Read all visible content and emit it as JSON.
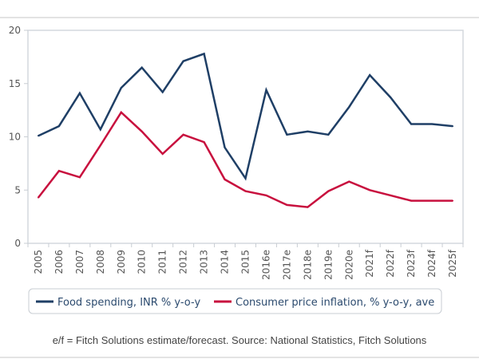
{
  "chart_data": {
    "type": "line",
    "categories": [
      "2005",
      "2006",
      "2007",
      "2008",
      "2009",
      "2010",
      "2011",
      "2012",
      "2013",
      "2014",
      "2015",
      "2016e",
      "2017e",
      "2018e",
      "2019e",
      "2020e",
      "2021f",
      "2022f",
      "2023f",
      "2024f",
      "2025f"
    ],
    "series": [
      {
        "name": "Food spending, INR % y-o-y",
        "color": "#1f3f66",
        "values": [
          10.1,
          11.0,
          14.1,
          10.7,
          14.6,
          16.5,
          14.2,
          17.1,
          17.8,
          9.0,
          6.1,
          14.4,
          10.2,
          10.5,
          10.2,
          12.8,
          15.8,
          13.7,
          11.2,
          11.2,
          11.0
        ]
      },
      {
        "name": "Consumer price inflation, % y-o-y, ave",
        "color": "#c8103e",
        "values": [
          4.3,
          6.8,
          6.2,
          9.2,
          12.3,
          10.5,
          8.4,
          10.2,
          9.5,
          6.0,
          4.9,
          4.5,
          3.6,
          3.4,
          4.9,
          5.8,
          5.0,
          4.5,
          4.0,
          4.0,
          4.0
        ]
      }
    ],
    "ylim": [
      0,
      20
    ],
    "yticks": [
      "0",
      "5",
      "10",
      "15",
      "20"
    ],
    "grid": false,
    "legend_placement": "bottom"
  },
  "footnote": "e/f = Fitch Solutions estimate/forecast. Source: National Statistics, Fitch Solutions"
}
